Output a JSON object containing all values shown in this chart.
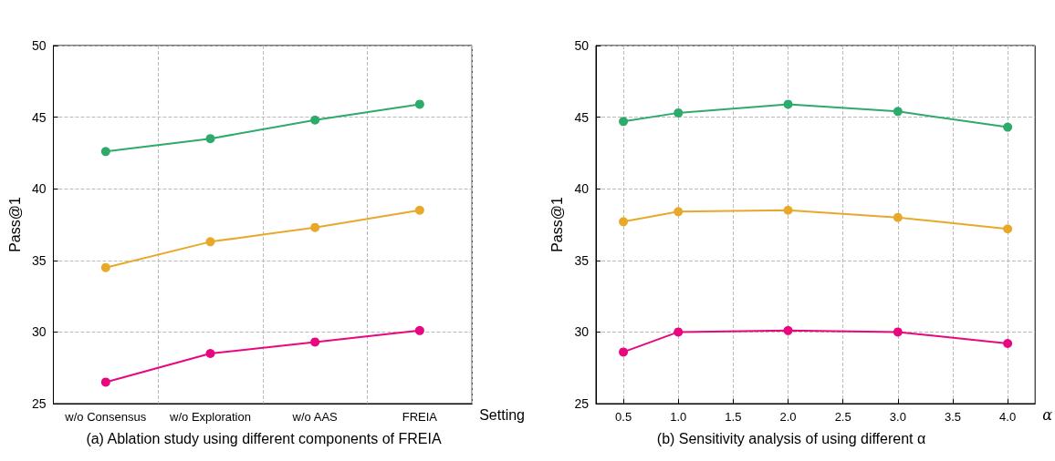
{
  "chart_data": [
    {
      "type": "line",
      "title": "(a) Ablation study using different components of FREIA",
      "xlabel": "Setting",
      "ylabel": "Pass@1",
      "categories": [
        "w/o Consensus",
        "w/o Exploration",
        "w/o AAS",
        "FREIA"
      ],
      "series": [
        {
          "color": "#e8a92a",
          "values": [
            34.5,
            36.3,
            37.3,
            38.5
          ]
        },
        {
          "color": "#e8077f",
          "values": [
            26.5,
            28.5,
            29.3,
            30.1
          ]
        },
        {
          "color": "#2eaa6a",
          "values": [
            42.6,
            43.5,
            44.8,
            45.9
          ]
        }
      ],
      "ylim": [
        25,
        50
      ],
      "yticks": [
        25,
        30,
        35,
        40,
        45,
        50
      ],
      "grid": true,
      "marker": "circle",
      "line_style": "solid"
    },
    {
      "type": "line",
      "title": "(b) Sensitivity analysis of using different α",
      "xlabel": "α",
      "ylabel": "Pass@1",
      "x": [
        0.5,
        1.0,
        2.0,
        3.0,
        4.0
      ],
      "series": [
        {
          "color": "#e8a92a",
          "values": [
            37.7,
            38.4,
            38.5,
            38.0,
            37.2
          ]
        },
        {
          "color": "#e8077f",
          "values": [
            28.6,
            30.0,
            30.1,
            30.0,
            29.2
          ]
        },
        {
          "color": "#2eaa6a",
          "values": [
            44.7,
            45.3,
            45.9,
            45.4,
            44.3
          ]
        }
      ],
      "xlim": [
        0.25,
        4.25
      ],
      "xticks": [
        {
          "value": 0.5,
          "label": "0.5"
        },
        {
          "value": 1.0,
          "label": "1.0"
        },
        {
          "value": 1.5,
          "label": "1.5"
        },
        {
          "value": 2.0,
          "label": "2.0"
        },
        {
          "value": 2.5,
          "label": "2.5"
        },
        {
          "value": 3.0,
          "label": "3.0"
        },
        {
          "value": 3.5,
          "label": "3.5"
        },
        {
          "value": 4.0,
          "label": "4.0"
        }
      ],
      "ylim": [
        25,
        50
      ],
      "yticks": [
        25,
        30,
        35,
        40,
        45,
        50
      ],
      "grid": true,
      "marker": "circle",
      "line_style": "solid"
    }
  ]
}
